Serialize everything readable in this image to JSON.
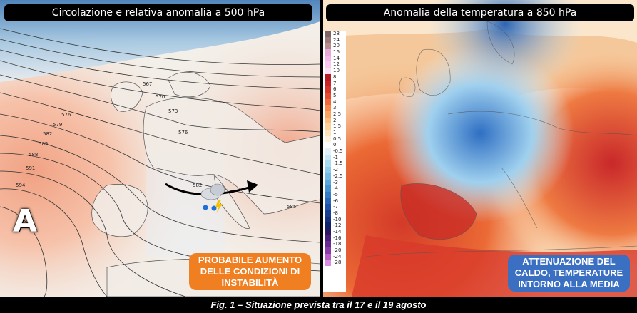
{
  "left_panel": {
    "title": "Circolazione e relativa anomalia a 500 hPa",
    "high_pressure_label": "A",
    "contour_labels": [
      "567",
      "570",
      "573",
      "576",
      "579",
      "582",
      "585",
      "588",
      "591",
      "594",
      "576",
      "582",
      "585"
    ],
    "callout": [
      "PROBABILE AUMENTO",
      "DELLE CONDIZIONI DI",
      "INSTABILITÀ"
    ],
    "callout_color": "#f07f22",
    "icons": [
      "storm-cloud-icon",
      "trajectory-arrow-icon"
    ]
  },
  "right_panel": {
    "title": "Anomalia della temperatura a 850 hPa",
    "legend_values": [
      "28",
      "24",
      "20",
      "16",
      "14",
      "12",
      "10",
      "8",
      "7",
      "6",
      "5",
      "4",
      "3",
      "2.5",
      "2",
      "1.5",
      "1",
      "0.5",
      "0",
      "-0.5",
      "-1",
      "-1.5",
      "-2",
      "-2.5",
      "-3",
      "-4",
      "-5",
      "-6",
      "-7",
      "-8",
      "-10",
      "-12",
      "-14",
      "-16",
      "-18",
      "-20",
      "-24",
      "-28"
    ],
    "legend_colors": [
      "#7d6565",
      "#9d7a7a",
      "#b88d8d",
      "#e7a7d8",
      "#f2b7e4",
      "#f7c9ee",
      "#fadff4",
      "#b31a22",
      "#c7242a",
      "#d8342c",
      "#e64b2f",
      "#f0683a",
      "#f6894a",
      "#f9a55f",
      "#fbbd78",
      "#fcd29a",
      "#fde3bc",
      "#fef1dc",
      "#ffffff",
      "#e1f2fb",
      "#c4e6f6",
      "#a8daf0",
      "#8dcbea",
      "#72bae3",
      "#5aa7dc",
      "#4592d2",
      "#357cc6",
      "#2866b8",
      "#1f51a6",
      "#183e92",
      "#13307d",
      "#0f2468",
      "#2b1660",
      "#4a1f7a",
      "#672a8f",
      "#8a3aa6",
      "#b55ec4",
      "#d98fe0"
    ],
    "callout": [
      "ATTENUAZIONE DEL",
      "CALDO, TEMPERATURE",
      "INTORNO ALLA MEDIA"
    ],
    "callout_color": "#3a6fc2"
  },
  "caption": "Fig. 1 – Situazione prevista tra il 17 e il 19 agosto"
}
